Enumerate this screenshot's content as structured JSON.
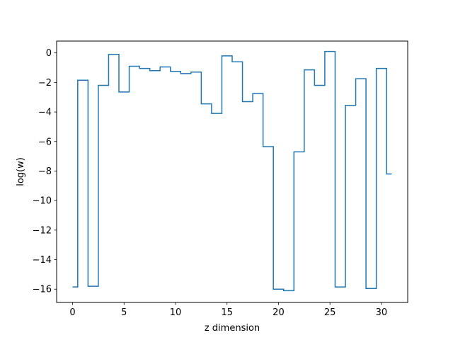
{
  "chart_data": {
    "type": "line",
    "drawstyle": "steps-mid",
    "xlabel": "z dimension",
    "ylabel": "log(w)",
    "xlim": [
      -1.55,
      32.55
    ],
    "ylim": [
      -16.9,
      0.8
    ],
    "xticks": [
      0,
      5,
      10,
      15,
      20,
      25,
      30
    ],
    "yticks": [
      0,
      -2,
      -4,
      -6,
      -8,
      -10,
      -12,
      -14,
      -16
    ],
    "grid": false,
    "series": [
      {
        "color": "#1f77b4",
        "x": [
          0,
          1,
          2,
          3,
          4,
          5,
          6,
          7,
          8,
          9,
          10,
          11,
          12,
          13,
          14,
          15,
          16,
          17,
          18,
          19,
          20,
          21,
          22,
          23,
          24,
          25,
          26,
          27,
          28,
          29,
          30,
          31
        ],
        "y": [
          -15.85,
          -1.85,
          -15.8,
          -2.2,
          -0.1,
          -2.65,
          -0.9,
          -1.05,
          -1.2,
          -0.95,
          -1.25,
          -1.4,
          -1.3,
          -3.45,
          -4.1,
          -0.2,
          -0.6,
          -3.3,
          -2.75,
          -6.35,
          -16.0,
          -16.1,
          -6.7,
          -1.15,
          -2.2,
          0.1,
          -15.85,
          -3.55,
          -1.75,
          -15.95,
          -1.05,
          -8.2
        ]
      }
    ]
  }
}
